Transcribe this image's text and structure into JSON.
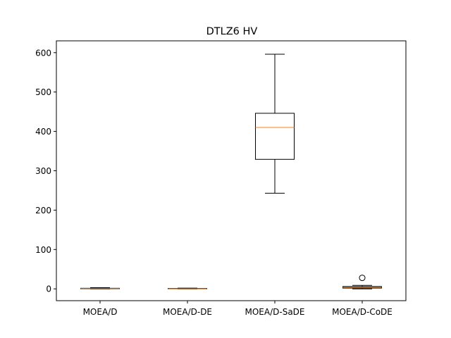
{
  "chart_data": {
    "type": "boxplot",
    "title": "DTLZ6 HV",
    "xlabel": "",
    "ylabel": "",
    "ylim": [
      -30,
      630
    ],
    "yticks": [
      0,
      100,
      200,
      300,
      400,
      500,
      600
    ],
    "categories": [
      "MOEA/D",
      "MOEA/D-DE",
      "MOEA/D-SaDE",
      "MOEA/D-CoDE"
    ],
    "boxes": [
      {
        "name": "MOEA/D",
        "whisker_low": 0,
        "q1": 0.3,
        "median": 0.8,
        "q3": 1.6,
        "whisker_high": 3,
        "fliers": []
      },
      {
        "name": "MOEA/D-DE",
        "whisker_low": 0,
        "q1": 0.2,
        "median": 0.5,
        "q3": 1.2,
        "whisker_high": 2,
        "fliers": []
      },
      {
        "name": "MOEA/D-SaDE",
        "whisker_low": 243,
        "q1": 329,
        "median": 410,
        "q3": 446,
        "whisker_high": 596,
        "fliers": []
      },
      {
        "name": "MOEA/D-CoDE",
        "whisker_low": 0,
        "q1": 2,
        "median": 4,
        "q3": 6,
        "whisker_high": 9,
        "fliers": [
          28
        ]
      }
    ],
    "grid": false,
    "colors": {
      "box": "#000000",
      "median": "#ff7f0e"
    }
  }
}
